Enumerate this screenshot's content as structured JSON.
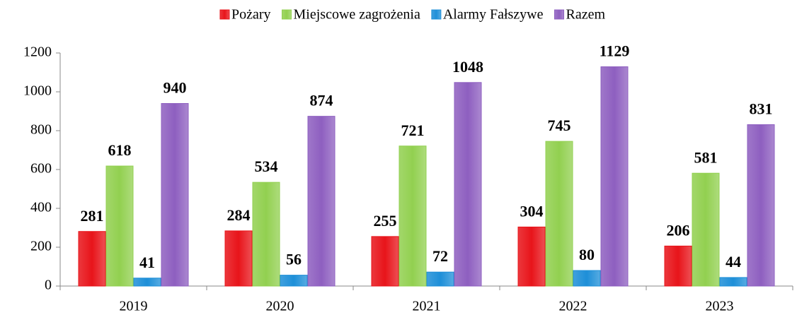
{
  "chart_data": {
    "type": "bar",
    "categories": [
      "2019",
      "2020",
      "2021",
      "2022",
      "2023"
    ],
    "series": [
      {
        "name": "Pożary",
        "color": "#e8141a",
        "values": [
          281,
          284,
          255,
          304,
          206
        ]
      },
      {
        "name": "Miejscowe zagrożenia",
        "color": "#92d050",
        "values": [
          618,
          534,
          721,
          745,
          581
        ]
      },
      {
        "name": "Alarmy Fałszywe",
        "color": "#1e8fd8",
        "values": [
          41,
          56,
          72,
          80,
          44
        ]
      },
      {
        "name": "Razem",
        "color": "#8e5fc0",
        "values": [
          940,
          874,
          1048,
          1129,
          831
        ]
      }
    ],
    "ylim": [
      0,
      1200
    ],
    "yticks": [
      0,
      200,
      400,
      600,
      800,
      1000,
      1200
    ],
    "legend": "top",
    "grid": false
  }
}
